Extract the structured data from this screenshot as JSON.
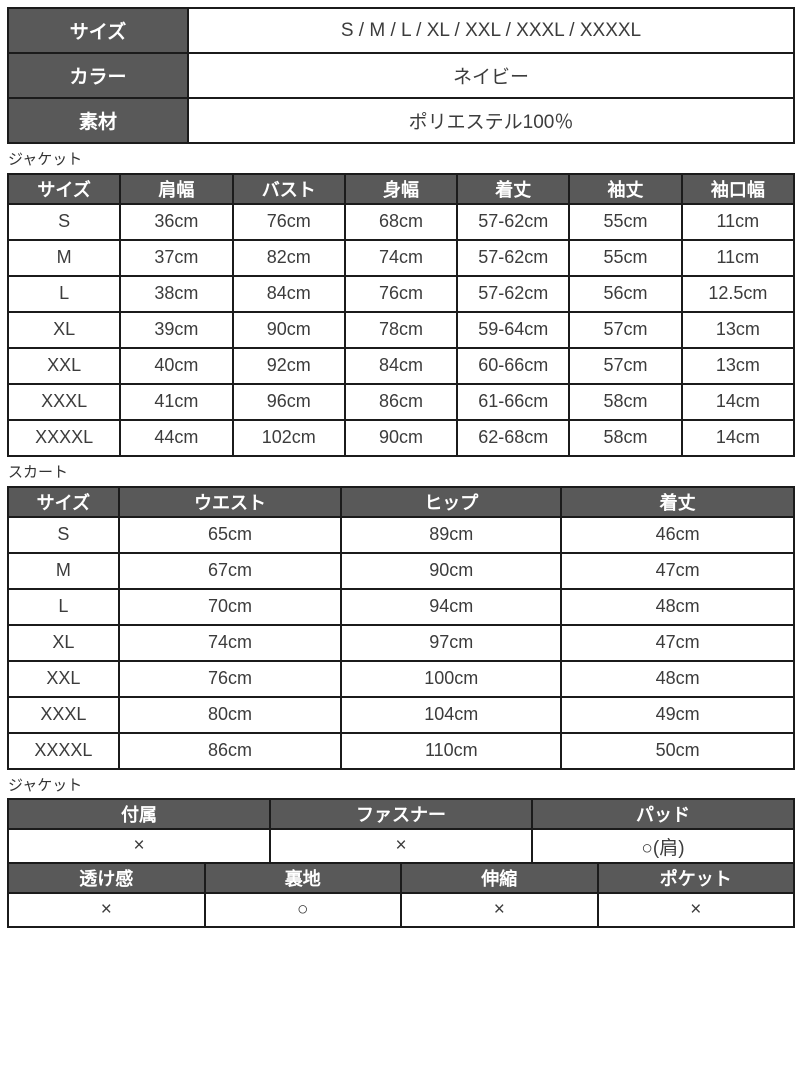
{
  "product_info": {
    "rows": [
      {
        "label": "サイズ",
        "value": "S / M / L / XL / XXL / XXXL / XXXXL"
      },
      {
        "label": "カラー",
        "value": "ネイビー"
      },
      {
        "label": "素材",
        "value": "ポリエステル100％"
      }
    ]
  },
  "jacket_size_table": {
    "section_label": "ジャケット",
    "headers": [
      "サイズ",
      "肩幅",
      "バスト",
      "身幅",
      "着丈",
      "袖丈",
      "袖口幅"
    ],
    "rows": [
      [
        "S",
        "36cm",
        "76cm",
        "68cm",
        "57-62cm",
        "55cm",
        "11cm"
      ],
      [
        "M",
        "37cm",
        "82cm",
        "74cm",
        "57-62cm",
        "55cm",
        "11cm"
      ],
      [
        "L",
        "38cm",
        "84cm",
        "76cm",
        "57-62cm",
        "56cm",
        "12.5cm"
      ],
      [
        "XL",
        "39cm",
        "90cm",
        "78cm",
        "59-64cm",
        "57cm",
        "13cm"
      ],
      [
        "XXL",
        "40cm",
        "92cm",
        "84cm",
        "60-66cm",
        "57cm",
        "13cm"
      ],
      [
        "XXXL",
        "41cm",
        "96cm",
        "86cm",
        "61-66cm",
        "58cm",
        "14cm"
      ],
      [
        "XXXXL",
        "44cm",
        "102cm",
        "90cm",
        "62-68cm",
        "58cm",
        "14cm"
      ]
    ]
  },
  "skirt_size_table": {
    "section_label": "スカート",
    "headers": [
      "サイズ",
      "ウエスト",
      "ヒップ",
      "着丈"
    ],
    "rows": [
      [
        "S",
        "65cm",
        "89cm",
        "46cm"
      ],
      [
        "M",
        "67cm",
        "90cm",
        "47cm"
      ],
      [
        "L",
        "70cm",
        "94cm",
        "48cm"
      ],
      [
        "XL",
        "74cm",
        "97cm",
        "47cm"
      ],
      [
        "XXL",
        "76cm",
        "100cm",
        "48cm"
      ],
      [
        "XXXL",
        "80cm",
        "104cm",
        "49cm"
      ],
      [
        "XXXXL",
        "86cm",
        "110cm",
        "50cm"
      ]
    ]
  },
  "jacket_details_table": {
    "section_label": "ジャケット",
    "row1_headers": [
      "付属",
      "ファスナー",
      "パッド"
    ],
    "row1_values": [
      "×",
      "×",
      "○(肩)"
    ],
    "row2_headers": [
      "透け感",
      "裏地",
      "伸縮",
      "ポケット"
    ],
    "row2_values": [
      "×",
      "○",
      "×",
      "×"
    ]
  },
  "colors": {
    "header_bg": "#595959",
    "header_text": "#ffffff",
    "body_text": "#3c3c3c",
    "border": "#1b1b1b",
    "cell_bg": "#ffffff"
  }
}
